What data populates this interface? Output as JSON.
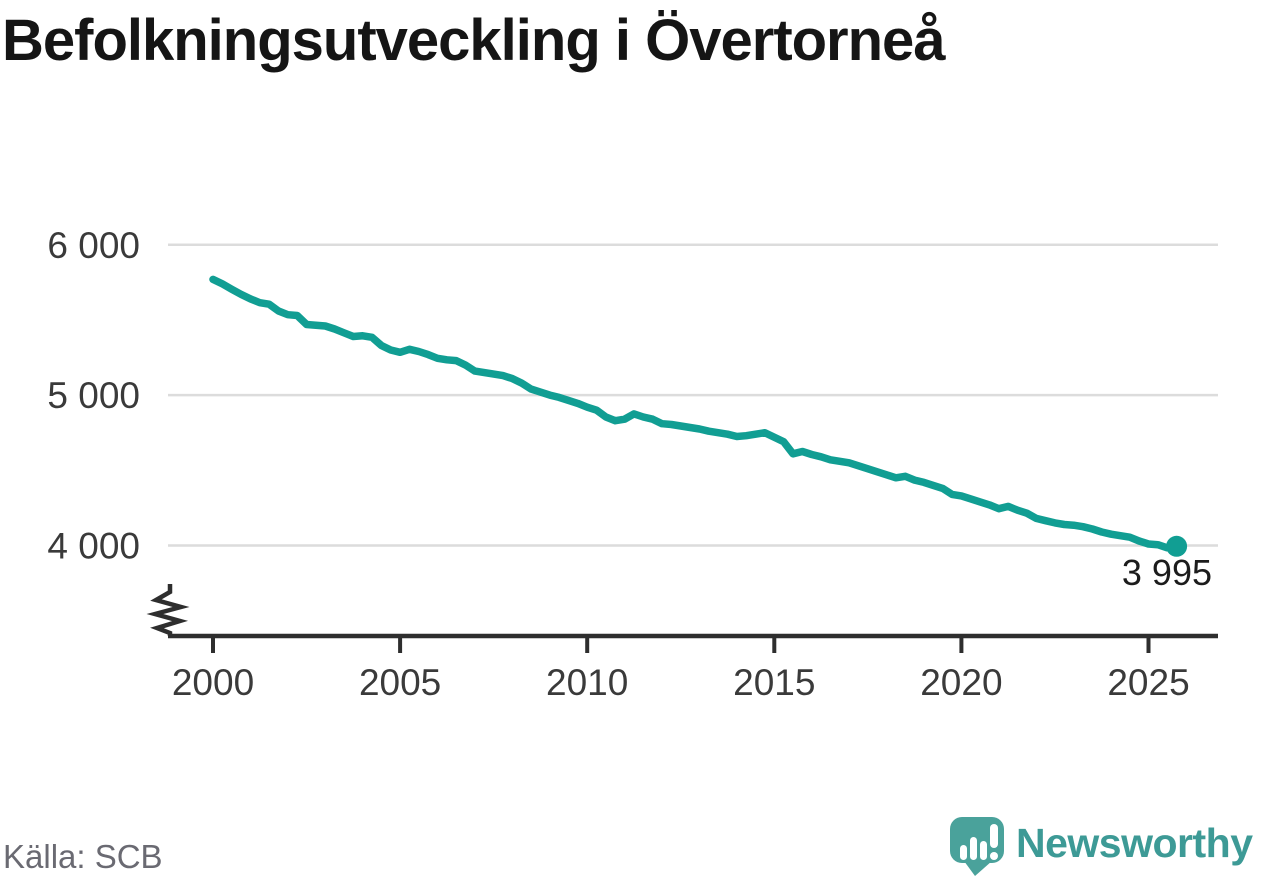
{
  "title": "Befolkningsutveckling i Övertorneå",
  "footer": {
    "source": "Källa: SCB"
  },
  "branding": {
    "name": "Newsworthy",
    "icon": "newsworthy-speech-bubble-bar-chart-icon",
    "text_color": "#3d9a96",
    "icon_color": "#4aa29b"
  },
  "chart_data": {
    "type": "line",
    "title": "Befolkningsutveckling i Övertorneå",
    "xlabel": "",
    "ylabel": "",
    "source": "Källa: SCB",
    "grid": "horizontal-only",
    "legend": "none",
    "axis_break_bottom_left": true,
    "line_color": "#119e93",
    "grid_color": "#dcdcdc",
    "axis_color": "#2e2e2e",
    "tick_label_color": "#3a3a3a",
    "xticks": [
      2000,
      2005,
      2010,
      2015,
      2020,
      2025
    ],
    "xtick_labels": [
      "2000",
      "2005",
      "2010",
      "2015",
      "2020",
      "2025"
    ],
    "yticks": [
      4000,
      5000,
      6000
    ],
    "ytick_labels": [
      "4 000",
      "5 000",
      "6 000"
    ],
    "xlim": [
      1998.8,
      2026.9
    ],
    "ylim_shown": [
      4000,
      6000
    ],
    "end_value": 3995,
    "end_label": "3 995",
    "x": [
      2000.0,
      2000.25,
      2000.5,
      2000.75,
      2001.0,
      2001.25,
      2001.5,
      2001.75,
      2002.0,
      2002.25,
      2002.5,
      2002.75,
      2003.0,
      2003.25,
      2003.5,
      2003.75,
      2004.0,
      2004.25,
      2004.5,
      2004.75,
      2005.0,
      2005.25,
      2005.5,
      2005.75,
      2006.0,
      2006.25,
      2006.5,
      2006.75,
      2007.0,
      2007.25,
      2007.5,
      2007.75,
      2008.0,
      2008.25,
      2008.5,
      2008.75,
      2009.0,
      2009.25,
      2009.5,
      2009.75,
      2010.0,
      2010.25,
      2010.5,
      2010.75,
      2011.0,
      2011.25,
      2011.5,
      2011.75,
      2012.0,
      2012.25,
      2012.5,
      2012.75,
      2013.0,
      2013.25,
      2013.5,
      2013.75,
      2014.0,
      2014.25,
      2014.5,
      2014.75,
      2015.0,
      2015.25,
      2015.5,
      2015.75,
      2016.0,
      2016.25,
      2016.5,
      2016.75,
      2017.0,
      2017.25,
      2017.5,
      2017.75,
      2018.0,
      2018.25,
      2018.5,
      2018.75,
      2019.0,
      2019.25,
      2019.5,
      2019.75,
      2020.0,
      2020.25,
      2020.5,
      2020.75,
      2021.0,
      2021.25,
      2021.5,
      2021.75,
      2022.0,
      2022.25,
      2022.5,
      2022.75,
      2023.0,
      2023.25,
      2023.5,
      2023.75,
      2024.0,
      2024.25,
      2024.5,
      2024.75,
      2025.0,
      2025.25,
      2025.5,
      2025.75
    ],
    "series": [
      {
        "name": "Befolkning i Övertorneå",
        "color": "#119e93",
        "values": [
          5770,
          5740,
          5705,
          5670,
          5640,
          5615,
          5605,
          5560,
          5535,
          5530,
          5470,
          5465,
          5460,
          5440,
          5415,
          5390,
          5395,
          5385,
          5330,
          5300,
          5285,
          5305,
          5290,
          5270,
          5245,
          5235,
          5230,
          5200,
          5160,
          5150,
          5140,
          5130,
          5110,
          5080,
          5040,
          5020,
          5000,
          4985,
          4965,
          4945,
          4920,
          4900,
          4855,
          4830,
          4840,
          4875,
          4855,
          4840,
          4810,
          4805,
          4795,
          4785,
          4775,
          4760,
          4750,
          4740,
          4725,
          4730,
          4740,
          4750,
          4720,
          4690,
          4610,
          4625,
          4605,
          4590,
          4570,
          4560,
          4550,
          4530,
          4510,
          4490,
          4470,
          4450,
          4460,
          4435,
          4420,
          4400,
          4380,
          4340,
          4330,
          4310,
          4290,
          4270,
          4245,
          4260,
          4235,
          4215,
          4180,
          4165,
          4150,
          4140,
          4135,
          4125,
          4110,
          4090,
          4075,
          4065,
          4055,
          4030,
          4010,
          4005,
          3985,
          3995
        ]
      }
    ]
  }
}
